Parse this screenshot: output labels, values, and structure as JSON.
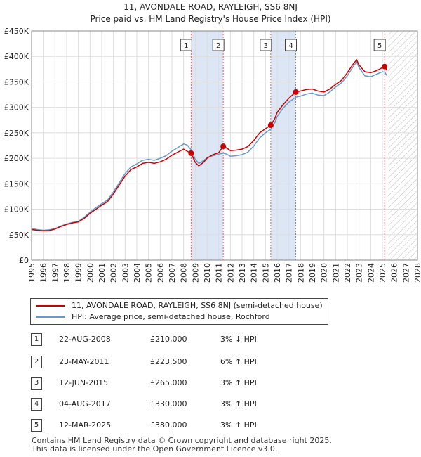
{
  "title_line1": "11, AVONDALE ROAD, RAYLEIGH, SS6 8NJ",
  "title_line2": "Price paid vs. HM Land Registry's House Price Index (HPI)",
  "chart_data": {
    "type": "line",
    "xlim": [
      1995,
      2028
    ],
    "ylim": [
      0,
      450000
    ],
    "x_ticks": [
      "1995",
      "1996",
      "1997",
      "1998",
      "1999",
      "2000",
      "2001",
      "2002",
      "2003",
      "2004",
      "2005",
      "2006",
      "2007",
      "2008",
      "2009",
      "2010",
      "2011",
      "2012",
      "2013",
      "2014",
      "2015",
      "2016",
      "2017",
      "2018",
      "2019",
      "2020",
      "2021",
      "2022",
      "2023",
      "2024",
      "2025",
      "2026",
      "2027",
      "2028"
    ],
    "y_ticks": [
      {
        "value": 0,
        "label": "£0"
      },
      {
        "value": 50000,
        "label": "£50K"
      },
      {
        "value": 100000,
        "label": "£100K"
      },
      {
        "value": 150000,
        "label": "£150K"
      },
      {
        "value": 200000,
        "label": "£200K"
      },
      {
        "value": 250000,
        "label": "£250K"
      },
      {
        "value": 300000,
        "label": "£300K"
      },
      {
        "value": 350000,
        "label": "£350K"
      },
      {
        "value": 400000,
        "label": "£400K"
      },
      {
        "value": 450000,
        "label": "£450K"
      }
    ],
    "grid": true,
    "hatched_future_from": 2025.5,
    "shaded_ranges": [
      [
        2008.64,
        2011.39
      ],
      [
        2015.45,
        2017.59
      ]
    ],
    "series": [
      {
        "name": "11, AVONDALE ROAD, RAYLEIGH, SS6 8NJ (semi-detached house)",
        "color": "#cc0000",
        "points": [
          [
            1995,
            60000
          ],
          [
            1995.5,
            58500
          ],
          [
            1996,
            57500
          ],
          [
            1996.5,
            58000
          ],
          [
            1997,
            61000
          ],
          [
            1997.5,
            66000
          ],
          [
            1998,
            70000
          ],
          [
            1998.5,
            73000
          ],
          [
            1999,
            75000
          ],
          [
            1999.5,
            82000
          ],
          [
            2000,
            92000
          ],
          [
            2000.5,
            100000
          ],
          [
            2001,
            108000
          ],
          [
            2001.5,
            115000
          ],
          [
            2002,
            130000
          ],
          [
            2002.5,
            148000
          ],
          [
            2003,
            165000
          ],
          [
            2003.5,
            178000
          ],
          [
            2004,
            183000
          ],
          [
            2004.5,
            190000
          ],
          [
            2005,
            192000
          ],
          [
            2005.5,
            190000
          ],
          [
            2006,
            193000
          ],
          [
            2006.5,
            198000
          ],
          [
            2007,
            206000
          ],
          [
            2007.5,
            212000
          ],
          [
            2008,
            218000
          ],
          [
            2008.3,
            214000
          ],
          [
            2008.64,
            210000
          ],
          [
            2009,
            192000
          ],
          [
            2009.3,
            185000
          ],
          [
            2009.7,
            192000
          ],
          [
            2010,
            200000
          ],
          [
            2010.5,
            207000
          ],
          [
            2011,
            211000
          ],
          [
            2011.39,
            223500
          ],
          [
            2011.7,
            220000
          ],
          [
            2012,
            215000
          ],
          [
            2012.5,
            216000
          ],
          [
            2013,
            218000
          ],
          [
            2013.5,
            223000
          ],
          [
            2014,
            235000
          ],
          [
            2014.5,
            250000
          ],
          [
            2015,
            258000
          ],
          [
            2015.45,
            265000
          ],
          [
            2015.8,
            278000
          ],
          [
            2016,
            290000
          ],
          [
            2016.5,
            305000
          ],
          [
            2017,
            318000
          ],
          [
            2017.59,
            330000
          ],
          [
            2018,
            332000
          ],
          [
            2018.5,
            335000
          ],
          [
            2019,
            336000
          ],
          [
            2019.5,
            332000
          ],
          [
            2020,
            330000
          ],
          [
            2020.5,
            336000
          ],
          [
            2021,
            345000
          ],
          [
            2021.5,
            353000
          ],
          [
            2022,
            368000
          ],
          [
            2022.5,
            385000
          ],
          [
            2022.8,
            393000
          ],
          [
            2023,
            383000
          ],
          [
            2023.5,
            370000
          ],
          [
            2024,
            368000
          ],
          [
            2024.5,
            372000
          ],
          [
            2025,
            378000
          ],
          [
            2025.19,
            380000
          ],
          [
            2025.4,
            372000
          ]
        ]
      },
      {
        "name": "HPI: Average price, semi-detached house, Rochford",
        "color": "#6699cc",
        "points": [
          [
            1995,
            62000
          ],
          [
            1995.5,
            60000
          ],
          [
            1996,
            58500
          ],
          [
            1996.5,
            59500
          ],
          [
            1997,
            62000
          ],
          [
            1997.5,
            67000
          ],
          [
            1998,
            71000
          ],
          [
            1998.5,
            74000
          ],
          [
            1999,
            76000
          ],
          [
            1999.5,
            84000
          ],
          [
            2000,
            94000
          ],
          [
            2000.5,
            103000
          ],
          [
            2001,
            111000
          ],
          [
            2001.5,
            118000
          ],
          [
            2002,
            134000
          ],
          [
            2002.5,
            152000
          ],
          [
            2003,
            170000
          ],
          [
            2003.5,
            183000
          ],
          [
            2004,
            189000
          ],
          [
            2004.5,
            196000
          ],
          [
            2005,
            198000
          ],
          [
            2005.5,
            196000
          ],
          [
            2006,
            200000
          ],
          [
            2006.5,
            205000
          ],
          [
            2007,
            214000
          ],
          [
            2007.5,
            221000
          ],
          [
            2008,
            228000
          ],
          [
            2008.3,
            226000
          ],
          [
            2008.64,
            217000
          ],
          [
            2009,
            198000
          ],
          [
            2009.3,
            190000
          ],
          [
            2009.7,
            195000
          ],
          [
            2010,
            201000
          ],
          [
            2010.5,
            205000
          ],
          [
            2011,
            208000
          ],
          [
            2011.39,
            210000
          ],
          [
            2011.7,
            208000
          ],
          [
            2012,
            204000
          ],
          [
            2012.5,
            205000
          ],
          [
            2013,
            207000
          ],
          [
            2013.5,
            212000
          ],
          [
            2014,
            224000
          ],
          [
            2014.5,
            240000
          ],
          [
            2015,
            250000
          ],
          [
            2015.45,
            257000
          ],
          [
            2015.8,
            270000
          ],
          [
            2016,
            282000
          ],
          [
            2016.5,
            298000
          ],
          [
            2017,
            310000
          ],
          [
            2017.59,
            320000
          ],
          [
            2018,
            322000
          ],
          [
            2018.5,
            326000
          ],
          [
            2019,
            328000
          ],
          [
            2019.5,
            324000
          ],
          [
            2020,
            323000
          ],
          [
            2020.5,
            330000
          ],
          [
            2021,
            340000
          ],
          [
            2021.5,
            348000
          ],
          [
            2022,
            362000
          ],
          [
            2022.5,
            380000
          ],
          [
            2022.8,
            389000
          ],
          [
            2023,
            378000
          ],
          [
            2023.5,
            362000
          ],
          [
            2024,
            360000
          ],
          [
            2024.5,
            365000
          ],
          [
            2025,
            370000
          ],
          [
            2025.19,
            369000
          ],
          [
            2025.4,
            362000
          ]
        ]
      }
    ],
    "sales": [
      {
        "id": "1",
        "x": 2008.64,
        "price": 210000
      },
      {
        "id": "2",
        "x": 2011.39,
        "price": 223500
      },
      {
        "id": "3",
        "x": 2015.45,
        "price": 265000
      },
      {
        "id": "4",
        "x": 2017.59,
        "price": 330000
      },
      {
        "id": "5",
        "x": 2025.19,
        "price": 380000
      }
    ]
  },
  "legend": {
    "property": "11, AVONDALE ROAD, RAYLEIGH, SS6 8NJ (semi-detached house)",
    "hpi": "HPI: Average price, semi-detached house, Rochford"
  },
  "transactions": [
    {
      "num": "1",
      "date": "22-AUG-2008",
      "price": "£210,000",
      "hpi": "3% ↓ HPI"
    },
    {
      "num": "2",
      "date": "23-MAY-2011",
      "price": "£223,500",
      "hpi": "6% ↑ HPI"
    },
    {
      "num": "3",
      "date": "12-JUN-2015",
      "price": "£265,000",
      "hpi": "3% ↑ HPI"
    },
    {
      "num": "4",
      "date": "04-AUG-2017",
      "price": "£330,000",
      "hpi": "3% ↑ HPI"
    },
    {
      "num": "5",
      "date": "12-MAR-2025",
      "price": "£380,000",
      "hpi": "3% ↑ HPI"
    }
  ],
  "footer_line1": "Contains HM Land Registry data © Crown copyright and database right 2025.",
  "footer_line2": "This data is licensed under the Open Government Licence v3.0.",
  "colors": {
    "property": "#cc0000",
    "hpi": "#6699cc",
    "shade": "#dde6f5"
  }
}
